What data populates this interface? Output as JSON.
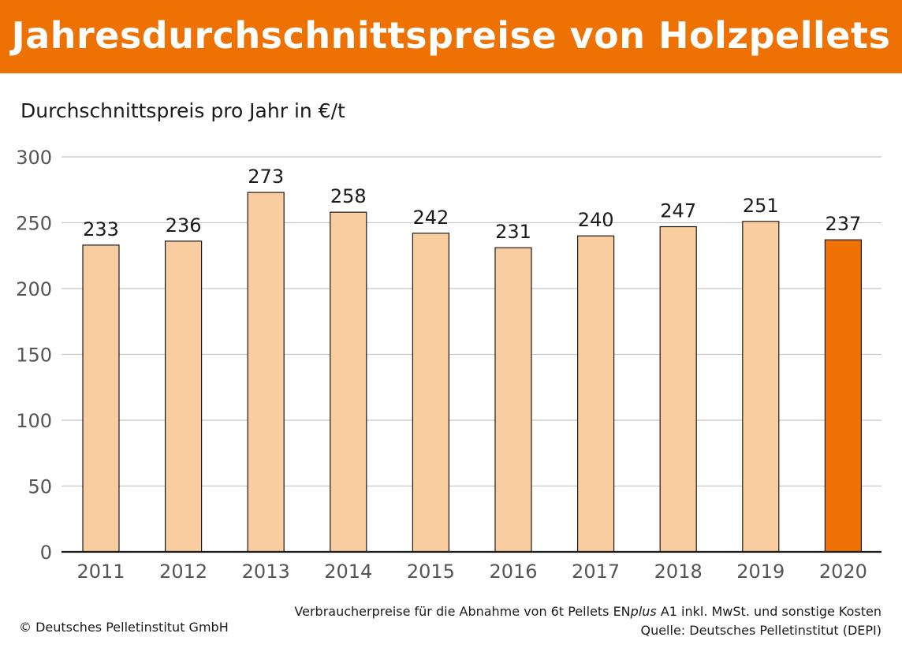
{
  "header": {
    "title": "Jahresdurchschnittspreise von Holzpellets"
  },
  "chart_data": {
    "type": "bar",
    "title": "Jahresdurchschnittspreise von Holzpellets",
    "subtitle": "Durchschnittspreis pro Jahr in €/t",
    "xlabel": "",
    "ylabel": "",
    "categories": [
      "2011",
      "2012",
      "2013",
      "2014",
      "2015",
      "2016",
      "2017",
      "2018",
      "2019",
      "2020"
    ],
    "values": [
      233,
      236,
      273,
      258,
      242,
      231,
      240,
      247,
      251,
      237
    ],
    "ylim": [
      0,
      300
    ],
    "yticks": [
      0,
      50,
      100,
      150,
      200,
      250,
      300
    ],
    "grid": true,
    "colors": {
      "bar": "#f9cda0",
      "highlight": "#ee7203",
      "outline": "#1a1a1a",
      "grid": "#c8c8c8"
    },
    "highlight_category": "2020"
  },
  "footer": {
    "note": "Verbraucherpreise für die Abnahme von 6t Pellets EN",
    "note_italic": "plus",
    "note_end": " A1 inkl. MwSt. und sonstige Kosten",
    "source": "Quelle: Deutsches Pelletinstitut (DEPI)",
    "copyright": "© Deutsches Pelletinstitut GmbH"
  }
}
